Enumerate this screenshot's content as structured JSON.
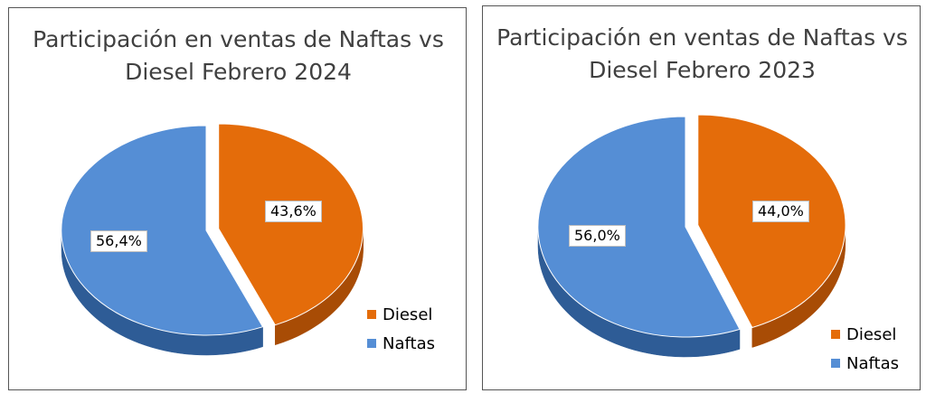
{
  "chart_data": [
    {
      "type": "pie",
      "title": "Participación en ventas de Naftas vs Diesel Febrero 2024",
      "title_lines": [
        "Participación en ventas de Naftas vs",
        "Diesel Febrero 2024"
      ],
      "slices": [
        {
          "name": "Diesel",
          "value": 43.6,
          "label": "43,6%",
          "color": "#E46C0A",
          "side_color": "#A84C05",
          "exploded": true
        },
        {
          "name": "Naftas",
          "value": 56.4,
          "label": "56,4%",
          "color": "#558ED5",
          "side_color": "#2E5C96",
          "exploded": false
        }
      ],
      "legend": {
        "position": "bottom-right",
        "entries": [
          "Diesel",
          "Naftas"
        ]
      },
      "style": "3d-exploded-pie"
    },
    {
      "type": "pie",
      "title": "Participación en ventas de Naftas vs Diesel Febrero 2023",
      "title_lines": [
        "Participación en ventas de Naftas vs",
        "Diesel Febrero 2023"
      ],
      "slices": [
        {
          "name": "Diesel",
          "value": 44.0,
          "label": "44,0%",
          "color": "#E46C0A",
          "side_color": "#A84C05",
          "exploded": true
        },
        {
          "name": "Naftas",
          "value": 56.0,
          "label": "56,0%",
          "color": "#558ED5",
          "side_color": "#2E5C96",
          "exploded": false
        }
      ],
      "legend": {
        "position": "bottom-right",
        "entries": [
          "Diesel",
          "Naftas"
        ]
      },
      "style": "3d-exploded-pie"
    }
  ]
}
